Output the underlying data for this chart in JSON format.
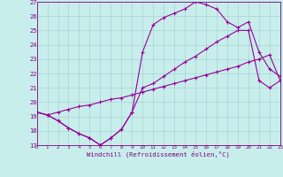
{
  "xlabel": "Windchill (Refroidissement éolien,°C)",
  "background_color": "#c8eeec",
  "line_color": "#990099",
  "grid_color": "#a0cccc",
  "xlim": [
    0,
    23
  ],
  "ylim": [
    17,
    27
  ],
  "yticks": [
    17,
    18,
    19,
    20,
    21,
    22,
    23,
    24,
    25,
    26,
    27
  ],
  "xticks": [
    0,
    1,
    2,
    3,
    4,
    5,
    6,
    7,
    8,
    9,
    10,
    11,
    12,
    13,
    14,
    15,
    16,
    17,
    18,
    19,
    20,
    21,
    22,
    23
  ],
  "line1_x": [
    0,
    1,
    2,
    3,
    4,
    5,
    6,
    7,
    8,
    9,
    10,
    11,
    12,
    13,
    14,
    15,
    16,
    17,
    18,
    19,
    20,
    21,
    22,
    23
  ],
  "line1_y": [
    19.3,
    19.1,
    18.7,
    18.2,
    17.8,
    17.5,
    17.0,
    17.5,
    18.1,
    19.3,
    21.0,
    21.3,
    21.8,
    22.3,
    22.8,
    23.2,
    23.7,
    24.2,
    24.6,
    25.0,
    25.0,
    21.5,
    21.0,
    21.5
  ],
  "line2_x": [
    0,
    1,
    2,
    3,
    4,
    5,
    6,
    7,
    8,
    9,
    10,
    11,
    12,
    13,
    14,
    15,
    16,
    17,
    18,
    19,
    20,
    21,
    22,
    23
  ],
  "line2_y": [
    19.3,
    19.1,
    18.7,
    18.2,
    17.8,
    17.5,
    17.0,
    17.5,
    18.1,
    19.3,
    23.5,
    25.4,
    25.9,
    26.2,
    26.5,
    27.0,
    26.8,
    26.5,
    25.6,
    25.2,
    25.6,
    23.5,
    22.3,
    21.8
  ],
  "line3_x": [
    0,
    1,
    2,
    3,
    4,
    5,
    6,
    7,
    8,
    9,
    10,
    11,
    12,
    13,
    14,
    15,
    16,
    17,
    18,
    19,
    20,
    21,
    22,
    23
  ],
  "line3_y": [
    19.3,
    19.1,
    19.3,
    19.5,
    19.7,
    19.8,
    20.0,
    20.2,
    20.3,
    20.5,
    20.7,
    20.9,
    21.1,
    21.3,
    21.5,
    21.7,
    21.9,
    22.1,
    22.3,
    22.5,
    22.8,
    23.0,
    23.3,
    21.5
  ],
  "marker": "+",
  "markersize": 3.5,
  "linewidth": 0.8
}
